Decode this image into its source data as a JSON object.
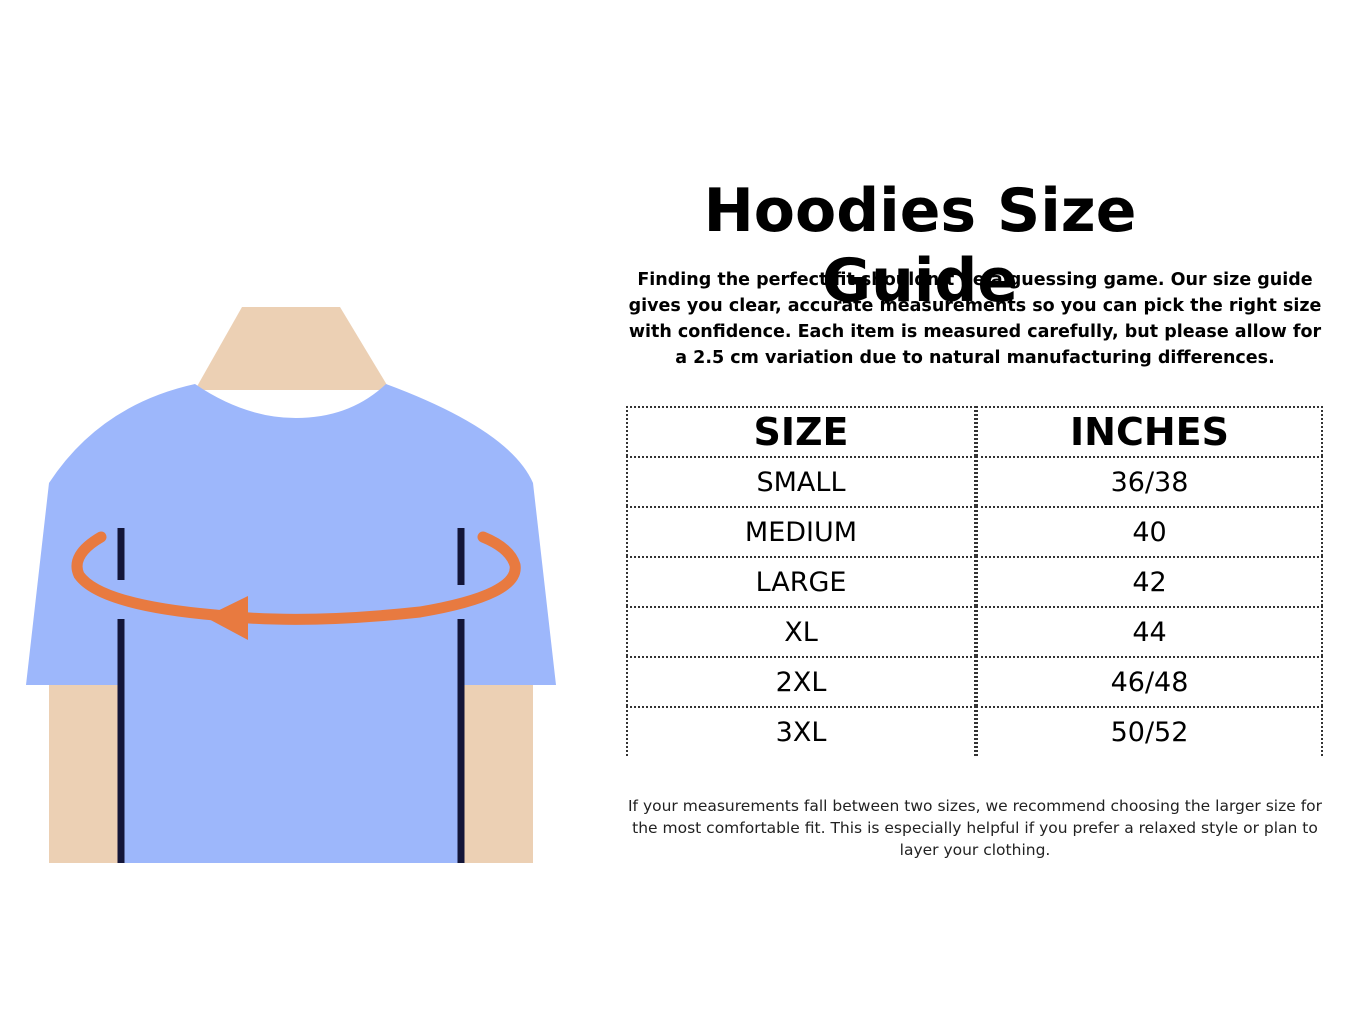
{
  "title": "Hoodies Size Guide",
  "intro": "Finding the perfect fit shouldn’t be a guessing game. Our size guide gives you clear, accurate measurements so you can pick the right size with confidence. Each item is measured carefully, but please allow for a 2.5 cm variation due to natural manufacturing differences.",
  "table": {
    "headers": [
      "SIZE",
      "INCHES"
    ],
    "rows": [
      {
        "size": "SMALL",
        "inches": "36/38"
      },
      {
        "size": "MEDIUM",
        "inches": "40"
      },
      {
        "size": "LARGE",
        "inches": "42"
      },
      {
        "size": "XL",
        "inches": "44"
      },
      {
        "size": "2XL",
        "inches": "46/48"
      },
      {
        "size": "3XL",
        "inches": "50/52"
      }
    ]
  },
  "note": "If your measurements fall between two sizes, we recommend choosing the larger size for the most comfortable fit. This is especially helpful if you prefer a relaxed style or plan to layer your clothing.",
  "colors": {
    "skin": "#ecd0b4",
    "shirt": "#9db7fb",
    "arrow": "#e87a40",
    "lines": "#131538"
  },
  "illustration": {
    "icon": "chest-measurement-shirt-icon"
  }
}
